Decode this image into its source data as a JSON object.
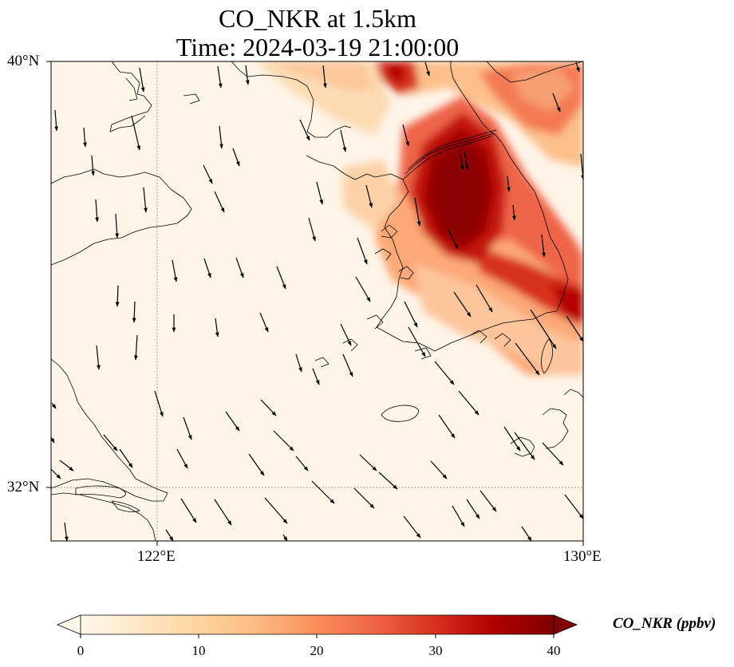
{
  "title_line1": "CO_NKR at 1.5km",
  "title_line2": "Time: 2024-03-19 21:00:00",
  "lat_labels": [
    "40°N",
    "32°N"
  ],
  "lon_labels": [
    "122°E",
    "130°E"
  ],
  "colorbar": {
    "label": "CO_NKR (ppbv)",
    "ticks": [
      "0",
      "10",
      "20",
      "30",
      "40"
    ],
    "min": 0,
    "max": 40,
    "colormap": "OrRd",
    "extend": "both"
  },
  "colors": {
    "low": "#fff7ec",
    "mid": "#fdbb84",
    "high": "#7f0000",
    "coast": "#000000",
    "grid": "#888888"
  }
}
